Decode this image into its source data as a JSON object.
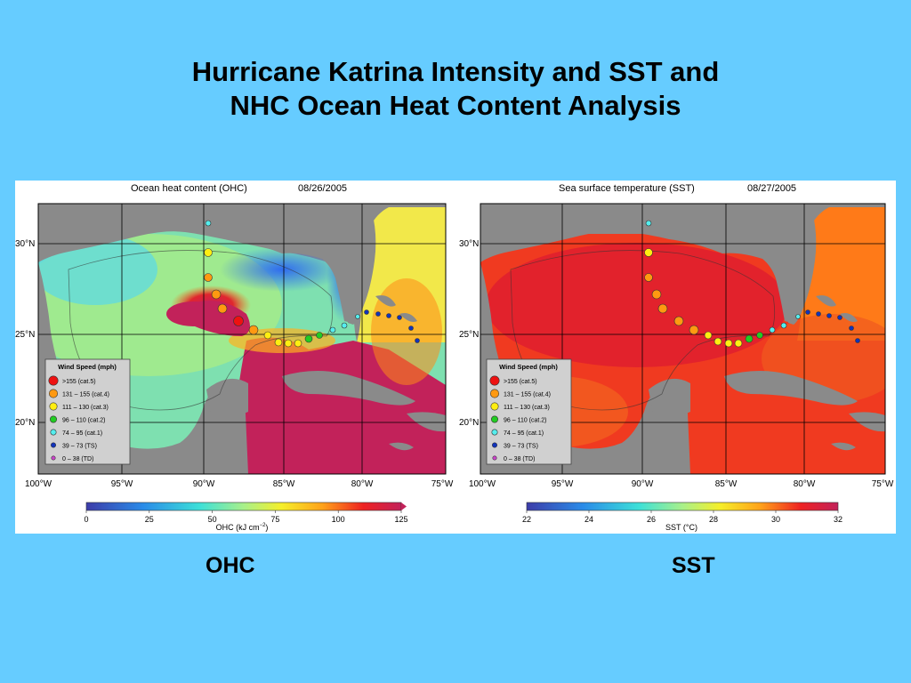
{
  "slide": {
    "title_line1": "Hurricane Katrina Intensity and SST and",
    "title_line2": "NHC Ocean Heat Content Analysis",
    "caption_left": "OHC",
    "caption_right": "SST"
  },
  "map_common": {
    "lat_labels": [
      "30°N",
      "25°N",
      "20°N"
    ],
    "lon_labels": [
      "100°W",
      "95°W",
      "90°W",
      "85°W",
      "80°W",
      "75°W"
    ],
    "legend": {
      "title": "Wind Speed (mph)",
      "items": [
        {
          "label": ">155 (cat.5)",
          "color": "#ee1111"
        },
        {
          "label": "131 – 155 (cat.4)",
          "color": "#ff9911"
        },
        {
          "label": "111 – 130 (cat.3)",
          "color": "#ffee11"
        },
        {
          "label": "96 – 110 (cat.2)",
          "color": "#22cc22"
        },
        {
          "label": "74 – 95 (cat.1)",
          "color": "#55eeee"
        },
        {
          "label": "39 – 73 (TS)",
          "color": "#1133bb"
        },
        {
          "label": "0 – 38 (TD)",
          "color": "#cc44cc"
        }
      ]
    },
    "track_colors": {
      "cat5": "#ee1111",
      "cat4": "#ff9911",
      "cat3": "#ffee11",
      "cat2": "#22cc22",
      "cat1": "#55eeee",
      "ts": "#1133bb"
    }
  },
  "ohc_map": {
    "title": "Ocean heat content (OHC)",
    "date": "08/26/2005",
    "colorbar_ticks": [
      "0",
      "25",
      "50",
      "75",
      "100",
      "125"
    ],
    "colorbar_label": "OHC (kJ cm",
    "colorbar_label_sup": "−2",
    "colorbar_label_end": ")"
  },
  "sst_map": {
    "title": "Sea surface temperature (SST)",
    "date": "08/27/2005",
    "colorbar_ticks": [
      "22",
      "24",
      "26",
      "28",
      "30",
      "32"
    ],
    "colorbar_label": "SST (°C)"
  }
}
